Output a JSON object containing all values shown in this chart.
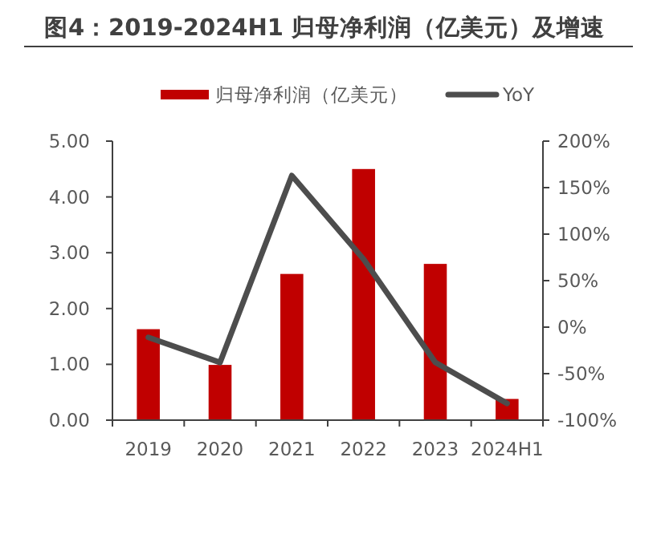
{
  "chart_data": {
    "type": "bar",
    "title": "图4：2019-2024H1 归母净利润（亿美元）及增速",
    "categories": [
      "2019",
      "2020",
      "2021",
      "2022",
      "2023",
      "2024H1"
    ],
    "series": [
      {
        "name": "归母净利润（亿美元）",
        "color": "#c00000",
        "values": [
          1.63,
          0.99,
          2.62,
          4.5,
          2.8,
          0.38
        ]
      },
      {
        "name": "YoY",
        "type": "line",
        "axis": "y2",
        "color": "#4d4d4d",
        "values": [
          -11,
          -38,
          163,
          73,
          -38,
          -82
        ]
      }
    ],
    "ylim": [
      0,
      5
    ],
    "yticks": [
      {
        "value": 0,
        "label": "0.00"
      },
      {
        "value": 1,
        "label": "1.00"
      },
      {
        "value": 2,
        "label": "2.00"
      },
      {
        "value": 3,
        "label": "3.00"
      },
      {
        "value": 4,
        "label": "4.00"
      },
      {
        "value": 5,
        "label": "5.00"
      }
    ],
    "y2lim": [
      -100,
      200
    ],
    "y2ticks": [
      {
        "value": -100,
        "label": "-100%"
      },
      {
        "value": -50,
        "label": "-50%"
      },
      {
        "value": 0,
        "label": "0%"
      },
      {
        "value": 50,
        "label": "50%"
      },
      {
        "value": 100,
        "label": "100%"
      },
      {
        "value": 150,
        "label": "150%"
      },
      {
        "value": 200,
        "label": "200%"
      }
    ],
    "legend": "top",
    "marker": "none",
    "line_style": "solid"
  }
}
